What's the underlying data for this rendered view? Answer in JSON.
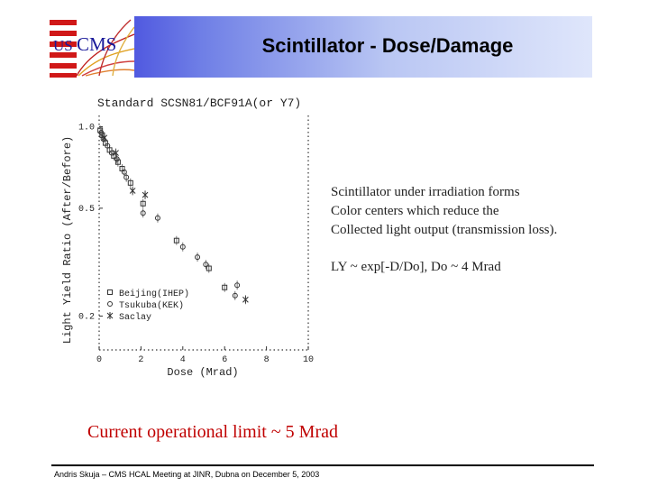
{
  "header": {
    "title": "Scintillator - Dose/Damage",
    "logo_text": "CMS",
    "logo_prefix": "US",
    "colors": {
      "gradient_start": "#2a2ad8",
      "gradient_end": "#dfe6fb",
      "flag_red": "#d01818",
      "flag_blue": "#1a1a9a"
    }
  },
  "chart_data": {
    "type": "scatter",
    "title": "Standard SCSN81/BCF91A(or Y7)",
    "xlabel": "Dose (Mrad)",
    "ylabel": "Light Yield Ratio (After/Before)",
    "xlim": [
      0,
      10
    ],
    "ylim": [
      0.15,
      1.1
    ],
    "y_scale": "log",
    "x_ticks": [
      0,
      2,
      4,
      6,
      8,
      10
    ],
    "y_ticks": [
      1.0,
      0.5,
      0.2
    ],
    "y_tick_labels": [
      "1.0",
      "0.5",
      "0.2"
    ],
    "legend_position": "bottom-left",
    "series": [
      {
        "name": "Beijing(IHEP)",
        "marker": "square",
        "points": [
          [
            0.05,
            0.97
          ],
          [
            0.15,
            0.93
          ],
          [
            0.3,
            0.87
          ],
          [
            0.5,
            0.82
          ],
          [
            0.7,
            0.78
          ],
          [
            0.9,
            0.74
          ],
          [
            1.1,
            0.7
          ],
          [
            1.5,
            0.62
          ],
          [
            2.1,
            0.52
          ],
          [
            3.7,
            0.38
          ],
          [
            5.25,
            0.3
          ],
          [
            6.0,
            0.255
          ]
        ]
      },
      {
        "name": "Tsukuba(KEK)",
        "marker": "circle",
        "points": [
          [
            0.1,
            0.95
          ],
          [
            0.2,
            0.9
          ],
          [
            0.4,
            0.85
          ],
          [
            0.6,
            0.8
          ],
          [
            0.85,
            0.76
          ],
          [
            1.2,
            0.68
          ],
          [
            1.3,
            0.65
          ],
          [
            2.1,
            0.48
          ],
          [
            2.8,
            0.46
          ],
          [
            4.0,
            0.36
          ],
          [
            4.7,
            0.33
          ],
          [
            5.1,
            0.31
          ],
          [
            6.6,
            0.26
          ],
          [
            6.5,
            0.238
          ]
        ]
      },
      {
        "name": "Saclay",
        "marker": "star",
        "points": [
          [
            0.25,
            0.91
          ],
          [
            0.8,
            0.8
          ],
          [
            1.6,
            0.58
          ],
          [
            2.2,
            0.56
          ],
          [
            7.0,
            0.23
          ]
        ]
      }
    ]
  },
  "notes": {
    "line1": "Scintillator under irradiation forms",
    "line2": "Color centers which reduce the",
    "line3": "Collected light output (transmission loss).",
    "formula": "LY ~ exp[-D/Do], Do ~ 4 Mrad"
  },
  "limit_text": "Current operational limit ~ 5 Mrad",
  "footer": {
    "text": "Andris Skuja – CMS HCAL Meeting at JINR, Dubna on December 5, 2003"
  }
}
